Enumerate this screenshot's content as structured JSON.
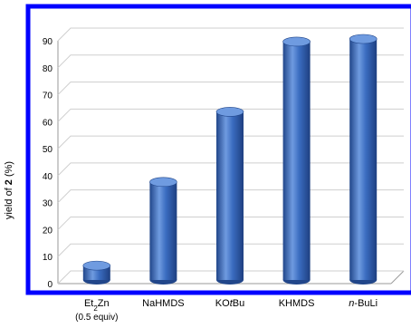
{
  "chart_data": {
    "type": "bar",
    "style": "3d-cylinder",
    "categories": [
      {
        "main": "Et",
        "sub": "2",
        "tail": "Zn",
        "line2": "(0.5 equiv)"
      },
      {
        "main": "NaHMDS"
      },
      {
        "main": "KO",
        "italic": "t",
        "tail": "Bu"
      },
      {
        "main": "KHMDS"
      },
      {
        "italic": "n",
        "tail": "-BuLi"
      }
    ],
    "values": [
      6,
      37,
      63,
      89,
      90
    ],
    "ylabel": {
      "prefix": "yield of ",
      "bold": "2",
      "suffix": " (%)"
    },
    "ylim": [
      0,
      90
    ],
    "yticks": [
      "0",
      "10",
      "20",
      "30",
      "40",
      "50",
      "60",
      "70",
      "80",
      "90"
    ],
    "grid": true,
    "legend": "none",
    "colors": {
      "bar": "#3a6cc0",
      "bar_dark": "#21468a",
      "bar_light": "#6f9be0",
      "frame": "#0000ff",
      "grid": "#cfcfcf"
    }
  }
}
